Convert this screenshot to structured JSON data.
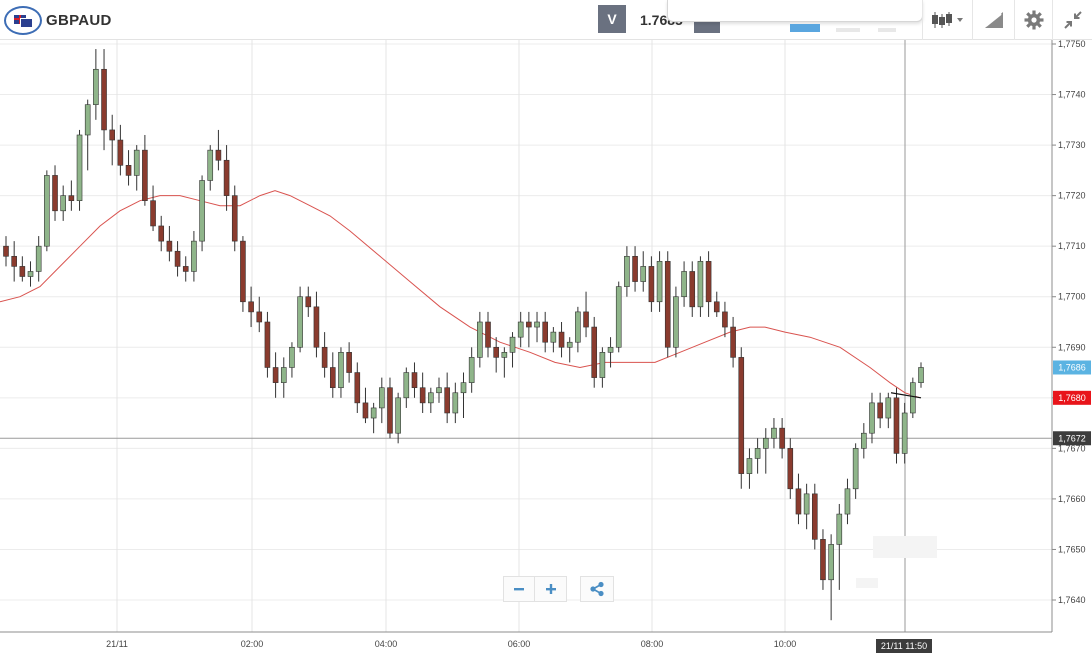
{
  "toolbar": {
    "symbol": "GBPAUD",
    "sell_button_label": "V",
    "sell_price": "1.7685"
  },
  "icons": {
    "flag": "gb-au-flag-icon",
    "chart_type": "candlestick-chart-icon",
    "draw": "drawing-tools-icon",
    "settings": "gear-icon",
    "collapse": "collapse-icon",
    "zoom_out": "minus-icon",
    "zoom_in": "plus-icon",
    "share": "share-icon"
  },
  "colors": {
    "bull_candle": "#8fb58a",
    "bear_candle": "#8a3b2e",
    "moving_average": "#d9534f",
    "current_price_label": "#5bb3e2",
    "ma_price_label": "#e8141a",
    "crosshair_label": "#3c3c3c"
  },
  "chart_data": {
    "type": "candlestick",
    "title": "GBPAUD",
    "ylim": [
      1.7633,
      1.7751
    ],
    "y_ticks": [
      "1,7750",
      "1,7740",
      "1,7730",
      "1,7720",
      "1,7710",
      "1,7700",
      "1,7690",
      "1,7680",
      "1,7670",
      "1,7660",
      "1,7650",
      "1,7640"
    ],
    "x_ticks": [
      "21/11",
      "02:00",
      "04:00",
      "06:00",
      "08:00",
      "10:00"
    ],
    "price_labels": {
      "current": "1,7686",
      "moving_average": "1,7680",
      "crosshair": "1,7672",
      "crosshair_time": "21/11 11:50"
    },
    "candles_ohlc": [
      [
        1.771,
        1.7712,
        1.7706,
        1.7708
      ],
      [
        1.7708,
        1.7711,
        1.7703,
        1.7706
      ],
      [
        1.7706,
        1.7708,
        1.7703,
        1.7704
      ],
      [
        1.7704,
        1.7707,
        1.7702,
        1.7705
      ],
      [
        1.7705,
        1.7712,
        1.7703,
        1.771
      ],
      [
        1.771,
        1.7725,
        1.7709,
        1.7724
      ],
      [
        1.7724,
        1.7726,
        1.7715,
        1.7717
      ],
      [
        1.7717,
        1.7722,
        1.7715,
        1.772
      ],
      [
        1.772,
        1.7723,
        1.7717,
        1.7719
      ],
      [
        1.7719,
        1.7733,
        1.7717,
        1.7732
      ],
      [
        1.7732,
        1.7739,
        1.7725,
        1.7738
      ],
      [
        1.7738,
        1.7749,
        1.7735,
        1.7745
      ],
      [
        1.7745,
        1.7749,
        1.7729,
        1.7733
      ],
      [
        1.7733,
        1.7736,
        1.7726,
        1.7731
      ],
      [
        1.7731,
        1.7734,
        1.7724,
        1.7726
      ],
      [
        1.7726,
        1.7729,
        1.7722,
        1.7724
      ],
      [
        1.7724,
        1.773,
        1.7721,
        1.7729
      ],
      [
        1.7729,
        1.7732,
        1.7718,
        1.7719
      ],
      [
        1.7719,
        1.7722,
        1.7713,
        1.7714
      ],
      [
        1.7714,
        1.7716,
        1.7709,
        1.7711
      ],
      [
        1.7711,
        1.7714,
        1.7707,
        1.7709
      ],
      [
        1.7709,
        1.7711,
        1.7704,
        1.7706
      ],
      [
        1.7706,
        1.7708,
        1.7703,
        1.7705
      ],
      [
        1.7705,
        1.7713,
        1.7703,
        1.7711
      ],
      [
        1.7711,
        1.7724,
        1.7709,
        1.7723
      ],
      [
        1.7723,
        1.773,
        1.7721,
        1.7729
      ],
      [
        1.7729,
        1.7733,
        1.7725,
        1.7727
      ],
      [
        1.7727,
        1.773,
        1.7717,
        1.772
      ],
      [
        1.772,
        1.7722,
        1.7709,
        1.7711
      ],
      [
        1.7711,
        1.7712,
        1.7697,
        1.7699
      ],
      [
        1.7699,
        1.7702,
        1.7694,
        1.7697
      ],
      [
        1.7697,
        1.77,
        1.7693,
        1.7695
      ],
      [
        1.7695,
        1.7697,
        1.7684,
        1.7686
      ],
      [
        1.7686,
        1.7689,
        1.768,
        1.7683
      ],
      [
        1.7683,
        1.7688,
        1.768,
        1.7686
      ],
      [
        1.7686,
        1.7691,
        1.7684,
        1.769
      ],
      [
        1.769,
        1.7702,
        1.7689,
        1.77
      ],
      [
        1.77,
        1.7702,
        1.7696,
        1.7698
      ],
      [
        1.7698,
        1.7701,
        1.7688,
        1.769
      ],
      [
        1.769,
        1.7693,
        1.7684,
        1.7686
      ],
      [
        1.7686,
        1.7689,
        1.768,
        1.7682
      ],
      [
        1.7682,
        1.769,
        1.768,
        1.7689
      ],
      [
        1.7689,
        1.7691,
        1.7683,
        1.7685
      ],
      [
        1.7685,
        1.7687,
        1.7677,
        1.7679
      ],
      [
        1.7679,
        1.7682,
        1.7675,
        1.7676
      ],
      [
        1.7676,
        1.7679,
        1.7673,
        1.7678
      ],
      [
        1.7678,
        1.7684,
        1.7675,
        1.7682
      ],
      [
        1.7682,
        1.7684,
        1.7672,
        1.7673
      ],
      [
        1.7673,
        1.7681,
        1.7671,
        1.768
      ],
      [
        1.768,
        1.7686,
        1.7678,
        1.7685
      ],
      [
        1.7685,
        1.7687,
        1.768,
        1.7682
      ],
      [
        1.7682,
        1.7685,
        1.7677,
        1.7679
      ],
      [
        1.7679,
        1.7682,
        1.7677,
        1.7681
      ],
      [
        1.7681,
        1.7684,
        1.7679,
        1.7682
      ],
      [
        1.7682,
        1.7685,
        1.7675,
        1.7677
      ],
      [
        1.7677,
        1.7683,
        1.7675,
        1.7681
      ],
      [
        1.7681,
        1.7685,
        1.7676,
        1.7683
      ],
      [
        1.7683,
        1.769,
        1.7681,
        1.7688
      ],
      [
        1.7688,
        1.7697,
        1.7686,
        1.7695
      ],
      [
        1.7695,
        1.7697,
        1.7688,
        1.769
      ],
      [
        1.769,
        1.7692,
        1.7685,
        1.7688
      ],
      [
        1.7688,
        1.769,
        1.7684,
        1.7689
      ],
      [
        1.7689,
        1.7693,
        1.7686,
        1.7692
      ],
      [
        1.7692,
        1.7697,
        1.769,
        1.7695
      ],
      [
        1.7695,
        1.7697,
        1.769,
        1.7694
      ],
      [
        1.7694,
        1.7697,
        1.7691,
        1.7695
      ],
      [
        1.7695,
        1.7697,
        1.7689,
        1.7691
      ],
      [
        1.7691,
        1.7694,
        1.7689,
        1.7693
      ],
      [
        1.7693,
        1.7695,
        1.7688,
        1.769
      ],
      [
        1.769,
        1.7692,
        1.7687,
        1.7691
      ],
      [
        1.7691,
        1.7698,
        1.7689,
        1.7697
      ],
      [
        1.7697,
        1.7701,
        1.7692,
        1.7694
      ],
      [
        1.7694,
        1.7696,
        1.7682,
        1.7684
      ],
      [
        1.7684,
        1.769,
        1.7682,
        1.7689
      ],
      [
        1.7689,
        1.7692,
        1.7686,
        1.769
      ],
      [
        1.769,
        1.7703,
        1.7689,
        1.7702
      ],
      [
        1.7702,
        1.771,
        1.77,
        1.7708
      ],
      [
        1.7708,
        1.771,
        1.7701,
        1.7703
      ],
      [
        1.7703,
        1.7709,
        1.7701,
        1.7706
      ],
      [
        1.7706,
        1.7708,
        1.7697,
        1.7699
      ],
      [
        1.7699,
        1.7709,
        1.7697,
        1.7707
      ],
      [
        1.7707,
        1.7709,
        1.7688,
        1.769
      ],
      [
        1.769,
        1.7702,
        1.7688,
        1.77
      ],
      [
        1.77,
        1.7707,
        1.7698,
        1.7705
      ],
      [
        1.7705,
        1.7707,
        1.7696,
        1.7698
      ],
      [
        1.7698,
        1.7708,
        1.7696,
        1.7707
      ],
      [
        1.7707,
        1.7709,
        1.7696,
        1.7699
      ],
      [
        1.7699,
        1.7701,
        1.7696,
        1.7697
      ],
      [
        1.7697,
        1.7699,
        1.7692,
        1.7694
      ],
      [
        1.7694,
        1.7696,
        1.7686,
        1.7688
      ],
      [
        1.7688,
        1.769,
        1.7662,
        1.7665
      ],
      [
        1.7665,
        1.767,
        1.7662,
        1.7668
      ],
      [
        1.7668,
        1.7672,
        1.7665,
        1.767
      ],
      [
        1.767,
        1.7674,
        1.7665,
        1.7672
      ],
      [
        1.7672,
        1.7676,
        1.767,
        1.7674
      ],
      [
        1.7674,
        1.7676,
        1.7668,
        1.767
      ],
      [
        1.767,
        1.7672,
        1.766,
        1.7662
      ],
      [
        1.7662,
        1.7665,
        1.7655,
        1.7657
      ],
      [
        1.7657,
        1.7663,
        1.7654,
        1.7661
      ],
      [
        1.7661,
        1.7663,
        1.765,
        1.7652
      ],
      [
        1.7652,
        1.7654,
        1.7642,
        1.7644
      ],
      [
        1.7644,
        1.7653,
        1.7636,
        1.7651
      ],
      [
        1.7651,
        1.7659,
        1.7642,
        1.7657
      ],
      [
        1.7657,
        1.7664,
        1.7655,
        1.7662
      ],
      [
        1.7662,
        1.7671,
        1.766,
        1.767
      ],
      [
        1.767,
        1.7675,
        1.7668,
        1.7673
      ],
      [
        1.7673,
        1.7681,
        1.7671,
        1.7679
      ],
      [
        1.7679,
        1.7681,
        1.7674,
        1.7676
      ],
      [
        1.7676,
        1.7681,
        1.7674,
        1.768
      ],
      [
        1.768,
        1.7682,
        1.7667,
        1.7669
      ],
      [
        1.7669,
        1.7679,
        1.7667,
        1.7677
      ],
      [
        1.7677,
        1.7684,
        1.7676,
        1.7683
      ],
      [
        1.7683,
        1.7687,
        1.7682,
        1.7686
      ]
    ],
    "moving_average": [
      [
        0,
        1.7699
      ],
      [
        20,
        1.77
      ],
      [
        40,
        1.7702
      ],
      [
        60,
        1.7706
      ],
      [
        80,
        1.771
      ],
      [
        100,
        1.7714
      ],
      [
        120,
        1.7717
      ],
      [
        140,
        1.7719
      ],
      [
        160,
        1.772
      ],
      [
        180,
        1.772
      ],
      [
        200,
        1.7719
      ],
      [
        220,
        1.7718
      ],
      [
        240,
        1.7718
      ],
      [
        260,
        1.772
      ],
      [
        275,
        1.7721
      ],
      [
        290,
        1.772
      ],
      [
        310,
        1.7718
      ],
      [
        330,
        1.7716
      ],
      [
        350,
        1.7713
      ],
      [
        380,
        1.7708
      ],
      [
        410,
        1.7703
      ],
      [
        440,
        1.7698
      ],
      [
        470,
        1.7694
      ],
      [
        500,
        1.7691
      ],
      [
        530,
        1.7689
      ],
      [
        555,
        1.7687
      ],
      [
        580,
        1.7686
      ],
      [
        605,
        1.7687
      ],
      [
        630,
        1.7687
      ],
      [
        655,
        1.7687
      ],
      [
        680,
        1.7689
      ],
      [
        705,
        1.7691
      ],
      [
        730,
        1.7693
      ],
      [
        750,
        1.7694
      ],
      [
        765,
        1.7694
      ],
      [
        785,
        1.7693
      ],
      [
        810,
        1.7692
      ],
      [
        840,
        1.769
      ],
      [
        870,
        1.7686
      ],
      [
        890,
        1.7683
      ],
      [
        905,
        1.7681
      ],
      [
        920,
        1.768
      ]
    ]
  }
}
